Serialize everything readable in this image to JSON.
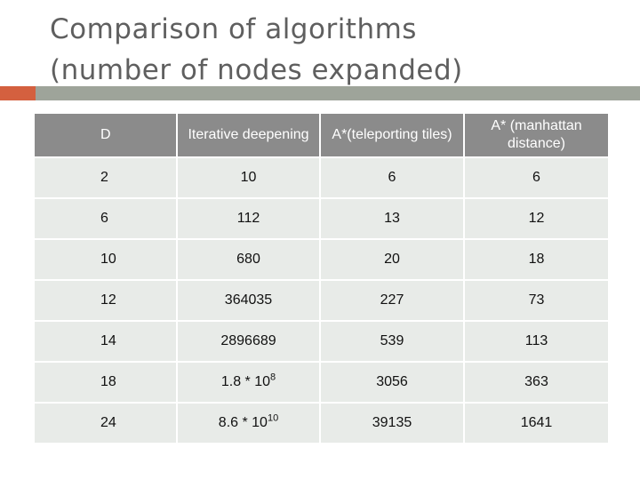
{
  "slide": {
    "title_line1": "Comparison of algorithms",
    "title_line2": "(number of nodes expanded)"
  },
  "colors": {
    "title": "#5f5f5f",
    "accent": "#d4603f",
    "bar": "#9ea49a",
    "header_bg": "#8b8b8b",
    "cell_bg": "#e8ebe8"
  },
  "table": {
    "headers": [
      "D",
      "Iterative deepening",
      "A*(teleporting tiles)",
      "A* (manhattan distance)"
    ],
    "rows": [
      [
        "2",
        "10",
        "6",
        "6"
      ],
      [
        "6",
        "112",
        "13",
        "12"
      ],
      [
        "10",
        "680",
        "20",
        "18"
      ],
      [
        "12",
        "364035",
        "227",
        "73"
      ],
      [
        "14",
        "2896689",
        "539",
        "113"
      ],
      [
        "18",
        "1.8 * 10",
        "3056",
        "363"
      ],
      [
        "24",
        "8.6 * 10",
        "39135",
        "1641"
      ]
    ],
    "exponents": {
      "row5": "8",
      "row6": "10"
    }
  }
}
